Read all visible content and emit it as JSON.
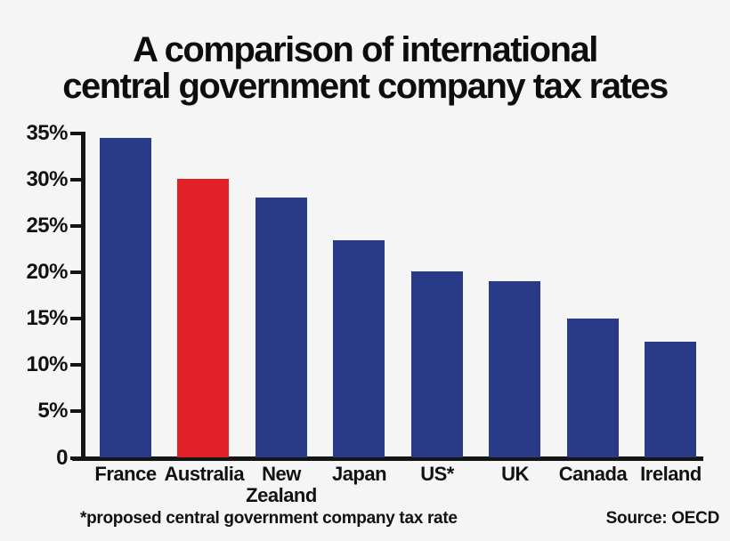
{
  "title": {
    "line1": "A comparison of international",
    "line2": "central government company tax rates"
  },
  "chart_data": {
    "type": "bar",
    "title": "A comparison of international central government company tax rates",
    "categories": [
      "France",
      "Australia",
      "New Zealand",
      "Japan",
      "US*",
      "UK",
      "Canada",
      "Ireland"
    ],
    "values": [
      34.4,
      30,
      28,
      23.4,
      20,
      19,
      15,
      12.5
    ],
    "unit": "%",
    "bar_colors": [
      "#293b87",
      "#e02127",
      "#293b87",
      "#293b87",
      "#293b87",
      "#293b87",
      "#293b87",
      "#293b87"
    ],
    "highlight_category": "Australia",
    "xlabel": "",
    "ylabel": "",
    "ylim": [
      0,
      35
    ],
    "yticks": [
      "35%",
      "30%",
      "25%",
      "20%",
      "15%",
      "10%",
      "5%",
      "0"
    ],
    "ytick_values": [
      35,
      30,
      25,
      20,
      15,
      10,
      5,
      0
    ],
    "grid": false,
    "legend": "none"
  },
  "footnote": "*proposed central government company tax rate",
  "source": "Source: OECD",
  "colors": {
    "bar_blue": "#293b87",
    "bar_red": "#e02127",
    "background": "#f5f5f6",
    "axis": "#151515",
    "text": "#111111"
  }
}
